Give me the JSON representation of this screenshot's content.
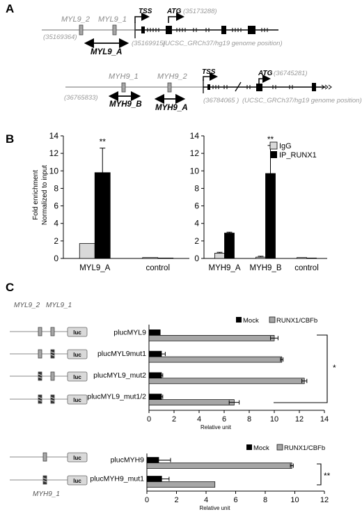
{
  "colors": {
    "gray_bar": "#a6a6a6",
    "light_bar": "#d9d9d9",
    "black": "#000000",
    "coord_text": "#9a9a9a"
  },
  "panelA": {
    "label": "A",
    "gene1": {
      "left_coord": "(35169364)",
      "ebox1": "MYL9_2",
      "ebox2": "MYL9_1",
      "tss": "TSS",
      "atg": "ATG",
      "atg_coord": "(35173288)",
      "tss_coord": "(35169915)",
      "ref": "(UCSC_GRCh37/hg19 genome position)",
      "amplicon": "MYL9_A"
    },
    "gene2": {
      "left_coord": "(36765833)",
      "ebox1": "MYH9_1",
      "ebox2": "MYH9_2",
      "tss": "TSS",
      "atg": "ATG",
      "atg_coord": "(36745281)",
      "tss_coord": "(36784065 )",
      "ref": "(UCSC_GRCh37/hg19 genome position)",
      "amplicon1": "MYH9_B",
      "amplicon2": "MYH9_A"
    }
  },
  "panelB": {
    "label": "B",
    "ylabel_line1": "Fold enrichment",
    "ylabel_line2": "Normalized to input",
    "legend": [
      "IgG",
      "IP_RUNX1"
    ],
    "sig": "**"
  },
  "panelC": {
    "label": "C",
    "construct_labels": {
      "ebox_a": "MYL9_2",
      "ebox_b": "MYL9_1",
      "luc": "luc",
      "bottom": "MYH9_1"
    },
    "sig_top": "*",
    "sig_bottom": "**"
  },
  "chart_data": [
    {
      "type": "bar",
      "panel": "B-left",
      "categories": [
        "MYL9_A",
        "control"
      ],
      "series": [
        {
          "name": "IgG",
          "values": [
            1.7,
            0.1
          ],
          "errors": [
            0,
            0
          ]
        },
        {
          "name": "IP_RUNX1",
          "values": [
            9.8,
            0.05
          ],
          "errors": [
            2.8,
            0
          ]
        }
      ],
      "ylim": [
        0,
        14
      ],
      "yticks": [
        0,
        2,
        4,
        6,
        8,
        10,
        12,
        14
      ],
      "annotations": [
        {
          "text": "**",
          "category": "MYL9_A"
        }
      ]
    },
    {
      "type": "bar",
      "panel": "B-right",
      "categories": [
        "MYH9_A",
        "MYH9_B",
        "control"
      ],
      "series": [
        {
          "name": "IgG",
          "values": [
            0.6,
            0.15,
            0.1
          ],
          "errors": [
            0.1,
            0.1,
            0
          ]
        },
        {
          "name": "IP_RUNX1",
          "values": [
            2.9,
            9.7,
            0.05
          ],
          "errors": [
            0.1,
            3.2,
            0
          ]
        }
      ],
      "ylim": [
        0,
        14
      ],
      "yticks": [
        0,
        2,
        4,
        6,
        8,
        10,
        12,
        14
      ],
      "annotations": [
        {
          "text": "**",
          "category": "MYH9_B"
        }
      ],
      "legend": "top-right"
    },
    {
      "type": "bar",
      "orientation": "horizontal",
      "panel": "C-top",
      "categories": [
        "plucMYL9",
        "plucMYL9mut1",
        "plucMYL9_mut2",
        "plucMYL9_mut1/2"
      ],
      "series": [
        {
          "name": "Mock",
          "values": [
            0.9,
            1.0,
            1.0,
            1.0
          ],
          "errors": [
            0,
            0.3,
            0.1,
            0.1
          ]
        },
        {
          "name": "RUNX1/CBFb",
          "values": [
            10.0,
            10.6,
            12.4,
            6.8
          ],
          "errors": [
            0.3,
            0.1,
            0.2,
            0.4
          ]
        }
      ],
      "xlim": [
        0,
        14
      ],
      "xticks": [
        0,
        2,
        4,
        6,
        8,
        10,
        12,
        14
      ],
      "xlabel": "Relative unit",
      "legend": "top-right"
    },
    {
      "type": "bar",
      "orientation": "horizontal",
      "panel": "C-bottom",
      "categories": [
        "plucMYH9",
        "plucMYH9_mut1"
      ],
      "series": [
        {
          "name": "Mock",
          "values": [
            0.8,
            1.0
          ],
          "errors": [
            0.8,
            0.5
          ]
        },
        {
          "name": "RUNX1/CBFb",
          "values": [
            9.8,
            4.6
          ],
          "errors": [
            0.1,
            0
          ]
        }
      ],
      "xlim": [
        0,
        12
      ],
      "xticks": [
        0,
        2,
        4,
        6,
        8,
        10,
        12
      ],
      "xlabel": "Relative unit",
      "legend": "top-right"
    }
  ]
}
